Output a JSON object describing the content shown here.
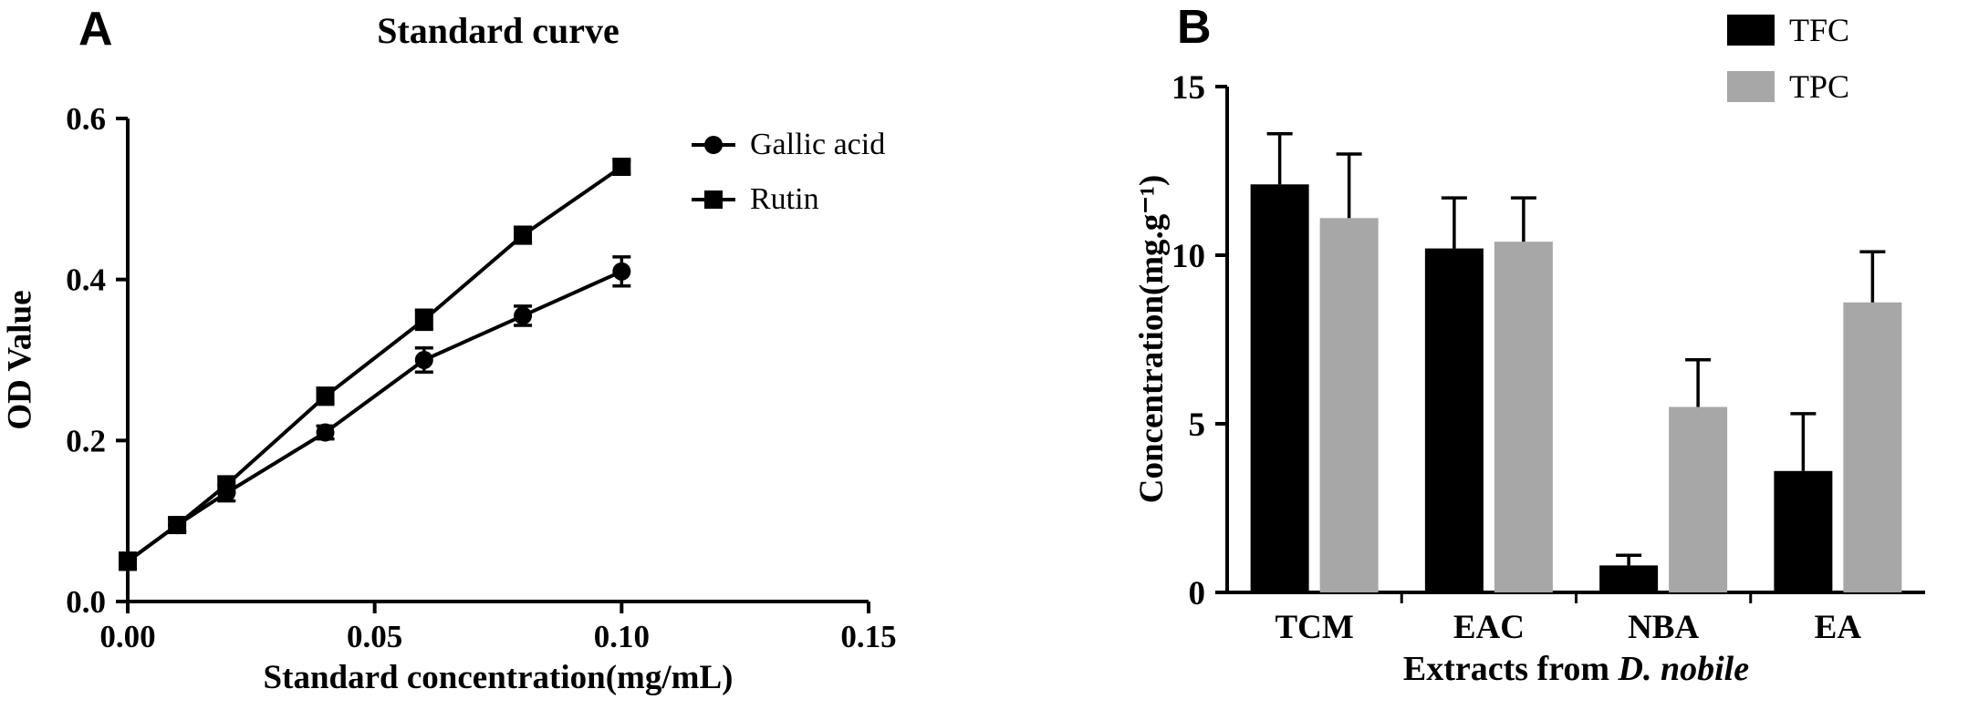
{
  "panels": [
    {
      "label": "A"
    },
    {
      "label": "B"
    }
  ],
  "chart_data": [
    {
      "id": "standard_curve",
      "type": "line",
      "title": "Standard curve",
      "xlabel": "Standard concentration(mg/mL)",
      "ylabel": "OD Value",
      "xlim": [
        0,
        0.15
      ],
      "ylim": [
        0,
        0.6
      ],
      "xtick_labels": [
        "0.00",
        "0.05",
        "0.10",
        "0.15"
      ],
      "ytick_labels": [
        "0.0",
        "0.2",
        "0.4",
        "0.6"
      ],
      "grid": false,
      "legend_position": "inside-top-right",
      "x": [
        0,
        0.01,
        0.02,
        0.04,
        0.06,
        0.08,
        0.1
      ],
      "series": [
        {
          "name": "Gallic acid",
          "marker": "circle",
          "color": "#000000",
          "values": [
            0.05,
            0.095,
            0.135,
            0.21,
            0.3,
            0.355,
            0.41
          ],
          "errors": [
            0.01,
            0.008,
            0.01,
            0.008,
            0.015,
            0.012,
            0.018
          ]
        },
        {
          "name": "Rutin",
          "marker": "square",
          "color": "#000000",
          "values": [
            0.05,
            0.095,
            0.145,
            0.255,
            0.35,
            0.455,
            0.54
          ],
          "errors": [
            0.01,
            0.008,
            0.01,
            0.01,
            0.012,
            0.01,
            0.008
          ]
        }
      ]
    },
    {
      "id": "extract_concentrations",
      "type": "bar",
      "xlabel": {
        "prefix": "Extracts from ",
        "italic": "D. nobile"
      },
      "ylabel": "Concentration(mg.g⁻¹)",
      "ylim": [
        0,
        15
      ],
      "ytick_labels": [
        "0",
        "5",
        "10",
        "15"
      ],
      "grid": false,
      "legend_position": "top-right",
      "categories": [
        "TCM",
        "EAC",
        "NBA",
        "EA"
      ],
      "series": [
        {
          "name": "TFC",
          "color": "#000000",
          "values": [
            12.1,
            10.2,
            0.8,
            3.6
          ],
          "errors": [
            1.5,
            1.5,
            0.3,
            1.7
          ]
        },
        {
          "name": "TPC",
          "color": "#a7a7a7",
          "values": [
            11.1,
            10.4,
            5.5,
            8.6
          ],
          "errors": [
            1.9,
            1.3,
            1.4,
            1.5
          ]
        }
      ]
    }
  ],
  "colors": {
    "axis": "#000000",
    "background": "#ffffff"
  }
}
